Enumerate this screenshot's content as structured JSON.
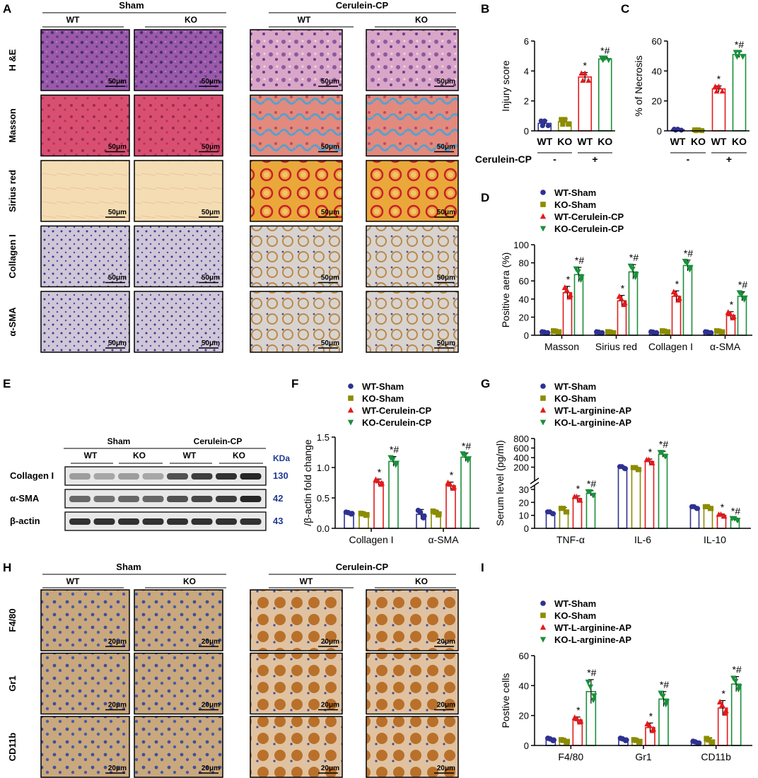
{
  "panel_labels": [
    "A",
    "B",
    "C",
    "D",
    "E",
    "F",
    "G",
    "H",
    "I"
  ],
  "colors": {
    "wt_sham": "#2e3192",
    "ko_sham": "#8c8c00",
    "wt_cer": "#e31a1c",
    "ko_cer": "#1a8f3a",
    "kda": "#1f3a93",
    "he_bg": "#8a4f9e",
    "masson_bg": "#d9506e",
    "sirius_bg": "#f2d9a6",
    "ihc_bg": "#c9c0d6",
    "ihc2_bg": "#c9a87a"
  },
  "panelA": {
    "group_sham": "Sham",
    "group_cer": "Cerulein-CP",
    "wt": "WT",
    "ko": "KO",
    "rows": [
      "H &E",
      "Masson",
      "Sirius red",
      "Collagen I",
      "α-SMA"
    ],
    "scale": "50μm"
  },
  "panelH": {
    "group_sham": "Sham",
    "group_cer": "Cerulein-CP",
    "wt": "WT",
    "ko": "KO",
    "rows": [
      "F4/80",
      "Gr1",
      "CD11b"
    ],
    "scale": "20μm"
  },
  "panelE": {
    "group_sham": "Sham",
    "group_cer": "Cerulein-CP",
    "wt": "WT",
    "ko": "KO",
    "kda_label": "KDa",
    "bands": [
      {
        "name": "Collagen I",
        "kda": "130"
      },
      {
        "name": "α-SMA",
        "kda": "42"
      },
      {
        "name": "β-actin",
        "kda": "43"
      }
    ]
  },
  "legend_cp": [
    "WT-Sham",
    "KO-Sham",
    "WT-Cerulein-CP",
    "KO-Cerulein-CP"
  ],
  "legend_ap": [
    "WT-Sham",
    "KO-Sham",
    "WT-L-arginine-AP",
    "KO-L-arginine-AP"
  ],
  "sig": {
    "star": "*",
    "starhash": "*#"
  },
  "chart_data": [
    {
      "panel": "B",
      "type": "bar",
      "categories": [
        "WT",
        "KO",
        "WT",
        "KO"
      ],
      "values": [
        0.5,
        0.6,
        3.6,
        4.8
      ],
      "errors": [
        0.2,
        0.2,
        0.3,
        0.1
      ],
      "sig": [
        "",
        "",
        "*",
        "*#"
      ],
      "ylabel": "Injury score",
      "ylim": [
        0,
        6
      ],
      "yticks": [
        0,
        2,
        4,
        6
      ],
      "treatment_label": "Cerulein-CP",
      "treatment_marks": [
        "-",
        "+"
      ]
    },
    {
      "panel": "C",
      "type": "bar",
      "categories": [
        "WT",
        "KO",
        "WT",
        "KO"
      ],
      "values": [
        0.8,
        0.4,
        28,
        51
      ],
      "errors": [
        0.4,
        0.3,
        2,
        2
      ],
      "sig": [
        "",
        "",
        "*",
        "*#"
      ],
      "ylabel": "% of Necrosis",
      "ylim": [
        0,
        60
      ],
      "yticks": [
        0,
        20,
        40,
        60
      ],
      "treatment_marks": [
        "-",
        "+"
      ]
    },
    {
      "panel": "D",
      "type": "bar",
      "categories": [
        "Masson",
        "Sirius red",
        "Collagen I",
        "α-SMA"
      ],
      "series": [
        {
          "name": "WT-Sham",
          "values": [
            3,
            3,
            3,
            3
          ],
          "errors": [
            1,
            1,
            1,
            1
          ]
        },
        {
          "name": "KO-Sham",
          "values": [
            4,
            3,
            4,
            4
          ],
          "errors": [
            1,
            1,
            1,
            1
          ]
        },
        {
          "name": "WT-Cerulein-CP",
          "values": [
            47,
            38,
            43,
            22
          ],
          "errors": [
            7,
            6,
            6,
            4
          ]
        },
        {
          "name": "KO-Cerulein-CP",
          "values": [
            67,
            70,
            77,
            43
          ],
          "errors": [
            8,
            8,
            6,
            5
          ]
        }
      ],
      "sig": [
        [
          "",
          "",
          "*",
          "*#"
        ],
        [
          "",
          "",
          "*",
          "*#"
        ],
        [
          "",
          "",
          "*",
          "*#"
        ],
        [
          "",
          "",
          "*",
          "*#"
        ]
      ],
      "ylabel": "Positive aera (%)",
      "ylim": [
        0,
        100
      ],
      "yticks": [
        0,
        20,
        40,
        60,
        80,
        100
      ]
    },
    {
      "panel": "F",
      "type": "bar",
      "categories": [
        "Collagen I",
        "α-SMA"
      ],
      "series": [
        {
          "name": "WT-Sham",
          "values": [
            0.25,
            0.23
          ],
          "errors": [
            0.02,
            0.08
          ]
        },
        {
          "name": "KO-Sham",
          "values": [
            0.23,
            0.25
          ],
          "errors": [
            0.02,
            0.04
          ]
        },
        {
          "name": "WT-Cerulein-CP",
          "values": [
            0.76,
            0.7
          ],
          "errors": [
            0.05,
            0.06
          ]
        },
        {
          "name": "KO-Cerulein-CP",
          "values": [
            1.1,
            1.17
          ],
          "errors": [
            0.08,
            0.07
          ]
        }
      ],
      "sig": [
        [
          "",
          "",
          "*",
          "*#"
        ],
        [
          "",
          "",
          "*",
          "*#"
        ]
      ],
      "ylabel": "/β-actin fold change",
      "ylim": [
        0,
        1.5
      ],
      "yticks": [
        0.0,
        0.5,
        1.0,
        1.5
      ]
    },
    {
      "panel": "G",
      "type": "bar",
      "categories": [
        "TNF-α",
        "IL-6",
        "IL-10"
      ],
      "series": [
        {
          "name": "WT-Sham",
          "values": [
            12,
            190,
            16
          ],
          "errors": [
            1,
            30,
            1
          ]
        },
        {
          "name": "KO-Sham",
          "values": [
            14,
            170,
            16
          ],
          "errors": [
            2,
            30,
            1
          ]
        },
        {
          "name": "WT-L-arginine-AP",
          "values": [
            23,
            320,
            10
          ],
          "errors": [
            2,
            50,
            1
          ]
        },
        {
          "name": "KO-L-arginine-AP",
          "values": [
            27,
            470,
            7
          ],
          "errors": [
            2,
            60,
            1
          ]
        }
      ],
      "sig": [
        [
          "",
          "",
          "*",
          "*#"
        ],
        [
          "",
          "",
          "*",
          "*#"
        ],
        [
          "",
          "",
          "*",
          "*#"
        ]
      ],
      "ylabel": "Serum level (pg/ml)",
      "axis_break": true,
      "lower_yticks": [
        0,
        10,
        20,
        30
      ],
      "upper_yticks": [
        200,
        400,
        600,
        800
      ]
    },
    {
      "panel": "I",
      "type": "bar",
      "categories": [
        "F4/80",
        "Gr1",
        "CD11b"
      ],
      "series": [
        {
          "name": "WT-Sham",
          "values": [
            4,
            4,
            2
          ],
          "errors": [
            1,
            1,
            1
          ]
        },
        {
          "name": "KO-Sham",
          "values": [
            3,
            3,
            3
          ],
          "errors": [
            1,
            1,
            2
          ]
        },
        {
          "name": "WT-L-arginine-AP",
          "values": [
            17,
            12,
            25
          ],
          "errors": [
            2,
            3,
            5
          ]
        },
        {
          "name": "KO-L-arginine-AP",
          "values": [
            36,
            31,
            41
          ],
          "errors": [
            8,
            5,
            5
          ]
        }
      ],
      "sig": [
        [
          "",
          "",
          "*",
          "*#"
        ],
        [
          "",
          "",
          "*",
          "*#"
        ],
        [
          "",
          "",
          "*",
          "*#"
        ]
      ],
      "ylabel": "Postive cells",
      "ylim": [
        0,
        60
      ],
      "yticks": [
        0,
        20,
        40,
        60
      ]
    }
  ]
}
